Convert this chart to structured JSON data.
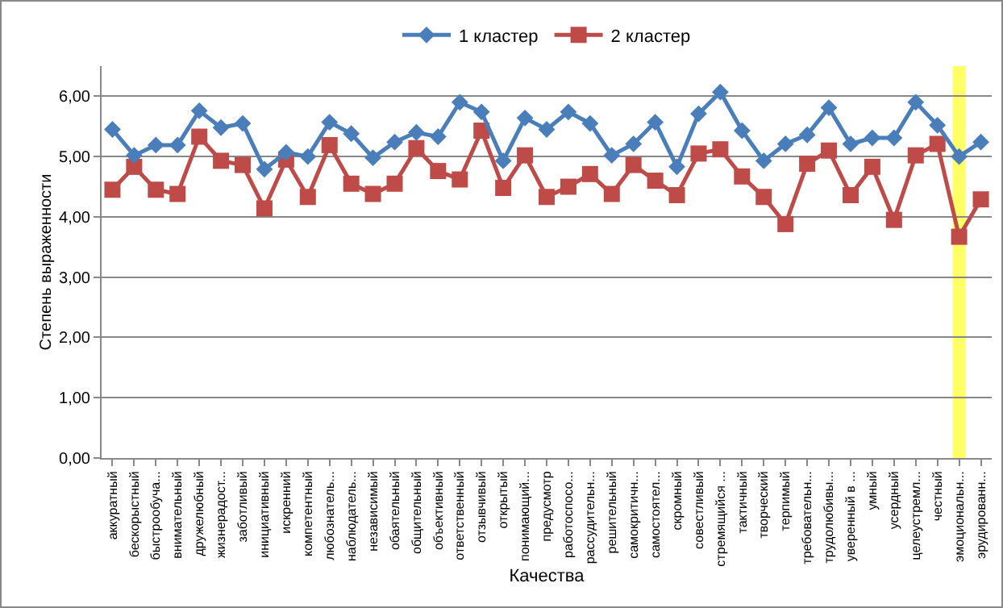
{
  "chart_data": {
    "type": "line",
    "xlabel": "Качества",
    "ylabel": "Степень выраженности",
    "categories": [
      "аккуратный",
      "бескорыстный",
      "быстрообуча...",
      "внимательный",
      "дружелюбный",
      "жизнерадост...",
      "заботливый",
      "инициативный",
      "искренний",
      "компетентный",
      "любознатель...",
      "наблюдатель...",
      "независимый",
      "обаятельный",
      "общительный",
      "объективный",
      "ответственный",
      "отзывчивый",
      "открытый",
      "понимающий...",
      "предусмотр",
      "работоспосо...",
      "рассудительн...",
      "решительный",
      "самокритичн...",
      "самостоятел...",
      "скромный",
      "совестливый",
      "стремящийся ...",
      "тактичный",
      "творческий",
      "терпимый",
      "требовательн...",
      "трудолюбивы...",
      "уверенный в ...",
      "умный",
      "усердный",
      "целеустремл...",
      "честный",
      "эмоциональн...",
      "эрудированн..."
    ],
    "series": [
      {
        "name": "1 кластер",
        "color": "#4a7ebb",
        "marker": "diamond",
        "values": [
          5.45,
          5.02,
          5.19,
          5.19,
          5.76,
          5.48,
          5.55,
          4.79,
          5.07,
          5.0,
          5.57,
          5.38,
          4.98,
          5.24,
          5.4,
          5.33,
          5.9,
          5.74,
          4.93,
          5.64,
          5.45,
          5.74,
          5.55,
          5.02,
          5.21,
          5.57,
          4.83,
          5.71,
          6.07,
          5.43,
          4.93,
          5.21,
          5.36,
          5.81,
          5.21,
          5.31,
          5.31,
          5.9,
          5.52,
          5.0,
          5.24
        ]
      },
      {
        "name": "2 кластер",
        "color": "#be4b48",
        "marker": "square",
        "values": [
          4.45,
          4.83,
          4.45,
          4.38,
          5.33,
          4.93,
          4.86,
          4.14,
          4.95,
          4.33,
          5.19,
          4.55,
          4.38,
          4.55,
          5.14,
          4.76,
          4.62,
          5.43,
          4.48,
          5.02,
          4.33,
          4.5,
          4.71,
          4.38,
          4.86,
          4.6,
          4.36,
          5.05,
          5.12,
          4.67,
          4.33,
          3.88,
          4.88,
          5.1,
          4.36,
          4.83,
          3.95,
          5.02,
          5.21,
          3.67,
          4.29
        ]
      }
    ],
    "ylim": [
      0,
      6.5
    ],
    "yticks": [
      {
        "value": 0,
        "label": "0,00"
      },
      {
        "value": 1,
        "label": "1,00"
      },
      {
        "value": 2,
        "label": "2,00"
      },
      {
        "value": 3,
        "label": "3,00"
      },
      {
        "value": 4,
        "label": "4,00"
      },
      {
        "value": 5,
        "label": "5,00"
      },
      {
        "value": 6,
        "label": "6,00"
      }
    ],
    "grid": "y",
    "legend": "top",
    "line_style": "solid",
    "bands": [
      {
        "axis": "x",
        "from": "эмоциональн...",
        "to": "эмоциональн...",
        "color": "#ffff66"
      }
    ]
  }
}
